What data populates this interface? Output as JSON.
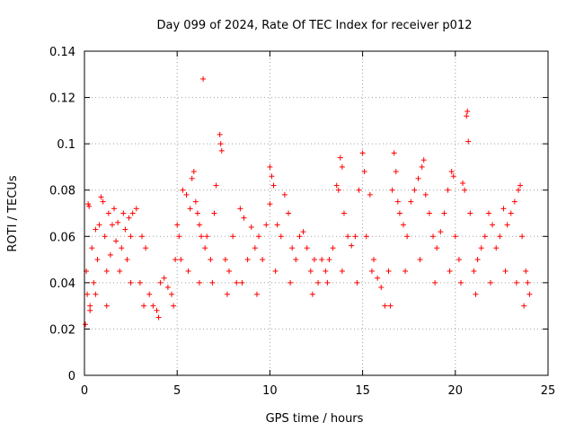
{
  "chart_data": {
    "type": "scatter",
    "title": "Day 099 of 2024, Rate Of TEC Index for receiver p012",
    "xlabel": "GPS time / hours",
    "ylabel": "ROTI / TECUs",
    "xlim": [
      0,
      25
    ],
    "ylim": [
      0,
      0.14
    ],
    "xticks": [
      0,
      5,
      10,
      15,
      20,
      25
    ],
    "yticks": [
      0,
      0.02,
      0.04,
      0.06,
      0.08,
      0.1,
      0.12,
      0.14
    ],
    "xtick_labels": [
      "0",
      "5",
      "10",
      "15",
      "20",
      "25"
    ],
    "ytick_labels": [
      "0",
      "0.02",
      "0.04",
      "0.06",
      "0.08",
      "0.1",
      "0.12",
      "0.14"
    ],
    "grid": true,
    "marker": "plus",
    "series": [
      {
        "color": "#ff0000",
        "points": [
          [
            0.05,
            0.022
          ],
          [
            0.1,
            0.045
          ],
          [
            0.15,
            0.035
          ],
          [
            0.2,
            0.074
          ],
          [
            0.25,
            0.073
          ],
          [
            0.3,
            0.03
          ],
          [
            0.4,
            0.055
          ],
          [
            0.5,
            0.04
          ],
          [
            0.6,
            0.063
          ],
          [
            0.7,
            0.05
          ],
          [
            0.8,
            0.065
          ],
          [
            0.9,
            0.077
          ],
          [
            1.0,
            0.075
          ],
          [
            1.1,
            0.06
          ],
          [
            1.2,
            0.045
          ],
          [
            1.3,
            0.07
          ],
          [
            1.4,
            0.052
          ],
          [
            1.5,
            0.065
          ],
          [
            1.6,
            0.072
          ],
          [
            1.7,
            0.058
          ],
          [
            1.8,
            0.066
          ],
          [
            1.9,
            0.045
          ],
          [
            2.0,
            0.055
          ],
          [
            2.1,
            0.07
          ],
          [
            2.2,
            0.063
          ],
          [
            2.3,
            0.05
          ],
          [
            2.4,
            0.068
          ],
          [
            2.5,
            0.06
          ],
          [
            2.6,
            0.07
          ],
          [
            2.8,
            0.072
          ],
          [
            3.0,
            0.04
          ],
          [
            3.1,
            0.06
          ],
          [
            3.3,
            0.055
          ],
          [
            3.5,
            0.035
          ],
          [
            3.7,
            0.03
          ],
          [
            3.9,
            0.028
          ],
          [
            4.1,
            0.04
          ],
          [
            4.3,
            0.042
          ],
          [
            4.5,
            0.038
          ],
          [
            4.7,
            0.035
          ],
          [
            4.9,
            0.05
          ],
          [
            5.0,
            0.065
          ],
          [
            5.1,
            0.06
          ],
          [
            5.2,
            0.05
          ],
          [
            5.3,
            0.08
          ],
          [
            5.5,
            0.078
          ],
          [
            5.7,
            0.072
          ],
          [
            5.8,
            0.085
          ],
          [
            5.9,
            0.088
          ],
          [
            6.0,
            0.075
          ],
          [
            6.1,
            0.07
          ],
          [
            6.2,
            0.065
          ],
          [
            6.3,
            0.06
          ],
          [
            6.4,
            0.128
          ],
          [
            6.5,
            0.055
          ],
          [
            6.6,
            0.06
          ],
          [
            6.8,
            0.05
          ],
          [
            7.0,
            0.07
          ],
          [
            7.1,
            0.082
          ],
          [
            7.3,
            0.104
          ],
          [
            7.35,
            0.1
          ],
          [
            7.4,
            0.097
          ],
          [
            7.6,
            0.05
          ],
          [
            7.8,
            0.045
          ],
          [
            8.0,
            0.06
          ],
          [
            8.2,
            0.04
          ],
          [
            8.4,
            0.072
          ],
          [
            8.6,
            0.068
          ],
          [
            8.8,
            0.05
          ],
          [
            9.0,
            0.064
          ],
          [
            9.2,
            0.055
          ],
          [
            9.4,
            0.06
          ],
          [
            9.6,
            0.05
          ],
          [
            9.8,
            0.065
          ],
          [
            10.0,
            0.09
          ],
          [
            10.1,
            0.086
          ],
          [
            10.2,
            0.082
          ],
          [
            10.0,
            0.074
          ],
          [
            10.4,
            0.065
          ],
          [
            10.6,
            0.06
          ],
          [
            10.8,
            0.078
          ],
          [
            11.0,
            0.07
          ],
          [
            11.2,
            0.055
          ],
          [
            11.4,
            0.05
          ],
          [
            11.6,
            0.06
          ],
          [
            11.8,
            0.062
          ],
          [
            12.0,
            0.055
          ],
          [
            12.2,
            0.045
          ],
          [
            12.4,
            0.05
          ],
          [
            12.6,
            0.04
          ],
          [
            12.8,
            0.05
          ],
          [
            13.0,
            0.045
          ],
          [
            13.2,
            0.05
          ],
          [
            13.4,
            0.055
          ],
          [
            13.6,
            0.082
          ],
          [
            13.7,
            0.08
          ],
          [
            13.8,
            0.094
          ],
          [
            13.9,
            0.09
          ],
          [
            14.0,
            0.07
          ],
          [
            14.2,
            0.06
          ],
          [
            14.4,
            0.056
          ],
          [
            14.6,
            0.06
          ],
          [
            14.8,
            0.08
          ],
          [
            15.0,
            0.096
          ],
          [
            15.1,
            0.088
          ],
          [
            15.2,
            0.06
          ],
          [
            15.4,
            0.078
          ],
          [
            15.6,
            0.05
          ],
          [
            15.8,
            0.042
          ],
          [
            16.0,
            0.038
          ],
          [
            16.2,
            0.03
          ],
          [
            16.4,
            0.045
          ],
          [
            16.6,
            0.08
          ],
          [
            16.7,
            0.096
          ],
          [
            16.8,
            0.088
          ],
          [
            16.9,
            0.075
          ],
          [
            17.0,
            0.07
          ],
          [
            17.2,
            0.065
          ],
          [
            17.4,
            0.06
          ],
          [
            17.6,
            0.075
          ],
          [
            17.8,
            0.08
          ],
          [
            18.0,
            0.085
          ],
          [
            18.2,
            0.09
          ],
          [
            18.3,
            0.093
          ],
          [
            18.4,
            0.078
          ],
          [
            18.6,
            0.07
          ],
          [
            18.8,
            0.06
          ],
          [
            19.0,
            0.055
          ],
          [
            19.2,
            0.062
          ],
          [
            19.4,
            0.07
          ],
          [
            19.6,
            0.08
          ],
          [
            19.8,
            0.088
          ],
          [
            19.9,
            0.086
          ],
          [
            20.0,
            0.06
          ],
          [
            20.2,
            0.05
          ],
          [
            20.4,
            0.083
          ],
          [
            20.5,
            0.08
          ],
          [
            20.6,
            0.112
          ],
          [
            20.65,
            0.114
          ],
          [
            20.7,
            0.101
          ],
          [
            20.8,
            0.07
          ],
          [
            21.0,
            0.045
          ],
          [
            21.2,
            0.05
          ],
          [
            21.4,
            0.055
          ],
          [
            21.6,
            0.06
          ],
          [
            21.8,
            0.07
          ],
          [
            22.0,
            0.065
          ],
          [
            22.2,
            0.055
          ],
          [
            22.4,
            0.06
          ],
          [
            22.6,
            0.072
          ],
          [
            22.8,
            0.065
          ],
          [
            23.0,
            0.07
          ],
          [
            23.2,
            0.075
          ],
          [
            23.4,
            0.08
          ],
          [
            23.5,
            0.082
          ],
          [
            23.6,
            0.06
          ],
          [
            23.8,
            0.045
          ],
          [
            23.9,
            0.04
          ],
          [
            24.0,
            0.035
          ],
          [
            0.3,
            0.028
          ],
          [
            0.6,
            0.035
          ],
          [
            1.2,
            0.03
          ],
          [
            2.5,
            0.04
          ],
          [
            3.2,
            0.03
          ],
          [
            4.0,
            0.025
          ],
          [
            4.8,
            0.03
          ],
          [
            5.6,
            0.045
          ],
          [
            6.2,
            0.04
          ],
          [
            6.9,
            0.04
          ],
          [
            7.7,
            0.035
          ],
          [
            8.5,
            0.04
          ],
          [
            9.3,
            0.035
          ],
          [
            10.3,
            0.045
          ],
          [
            11.1,
            0.04
          ],
          [
            12.3,
            0.035
          ],
          [
            13.1,
            0.04
          ],
          [
            13.9,
            0.045
          ],
          [
            14.7,
            0.04
          ],
          [
            15.5,
            0.045
          ],
          [
            16.5,
            0.03
          ],
          [
            17.3,
            0.045
          ],
          [
            18.1,
            0.05
          ],
          [
            18.9,
            0.04
          ],
          [
            19.7,
            0.045
          ],
          [
            20.3,
            0.04
          ],
          [
            21.1,
            0.035
          ],
          [
            21.9,
            0.04
          ],
          [
            22.7,
            0.045
          ],
          [
            23.3,
            0.04
          ],
          [
            23.7,
            0.03
          ]
        ]
      }
    ]
  }
}
